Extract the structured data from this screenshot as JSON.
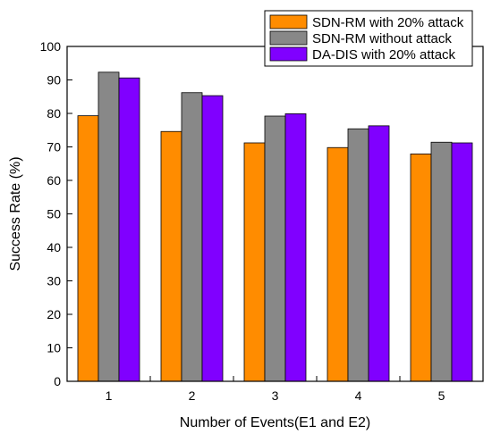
{
  "chart_data": {
    "type": "bar",
    "categories": [
      "1",
      "2",
      "3",
      "4",
      "5"
    ],
    "series": [
      {
        "name": "SDN-RM with 20% attack",
        "color": "#ff8c00",
        "values": [
          79.3,
          74.6,
          71.2,
          69.8,
          67.9
        ]
      },
      {
        "name": "SDN-RM without attack",
        "color": "#888888",
        "values": [
          92.3,
          86.2,
          79.2,
          75.4,
          71.4
        ]
      },
      {
        "name": "DA-DIS with 20% attack",
        "color": "#8000ff",
        "values": [
          90.6,
          85.3,
          79.9,
          76.3,
          71.2
        ]
      }
    ],
    "xlabel": "Number of Events(E1 and E2)",
    "ylabel": "Success Rate (%)",
    "ylim": [
      0,
      100
    ],
    "yticks": [
      "0",
      "10",
      "20",
      "30",
      "40",
      "50",
      "60",
      "70",
      "80",
      "90",
      "100"
    ],
    "grid": false,
    "legend_position": "top-right"
  }
}
